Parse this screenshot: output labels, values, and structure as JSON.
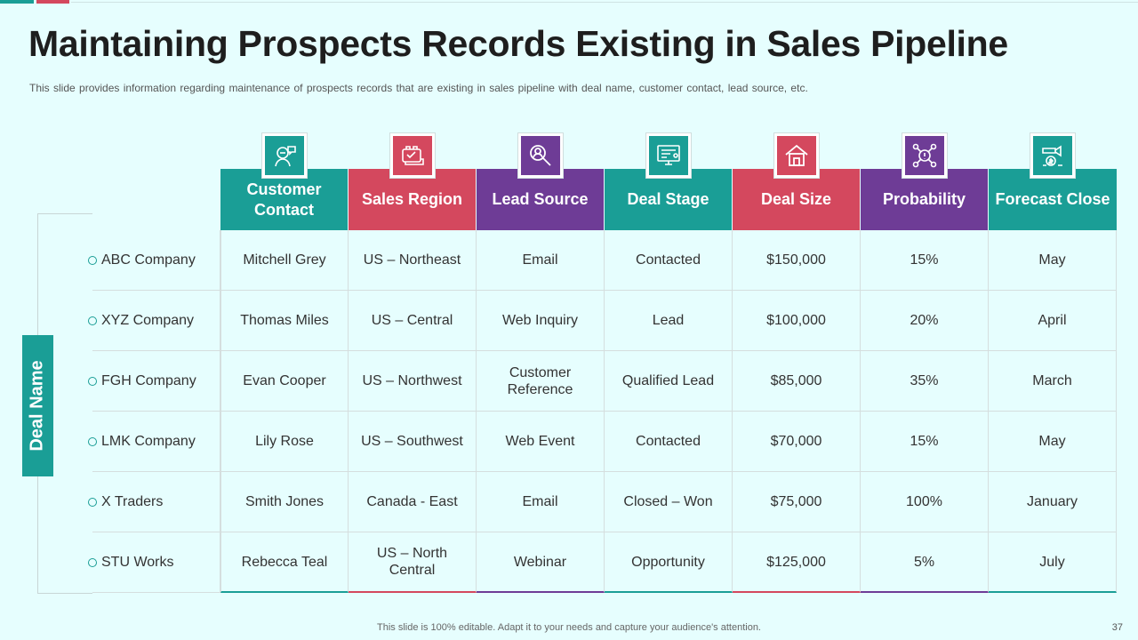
{
  "title": "Maintaining Prospects Records Existing in Sales Pipeline",
  "subtitle": "This slide provides  information regarding  maintenance of prospects records that are existing in sales pipeline with deal name, customer contact, lead source, etc.",
  "side_label": "Deal Name",
  "colors": {
    "teal": "#1a9e96",
    "red": "#d4485e",
    "purple": "#6e3c96"
  },
  "columns": [
    {
      "label": "Customer Contact",
      "color": "#1a9e96",
      "icon": "customer-contact-icon"
    },
    {
      "label": "Sales Region",
      "color": "#d4485e",
      "icon": "sales-region-icon"
    },
    {
      "label": "Lead Source",
      "color": "#6e3c96",
      "icon": "lead-source-icon"
    },
    {
      "label": "Deal Stage",
      "color": "#1a9e96",
      "icon": "deal-stage-icon"
    },
    {
      "label": "Deal Size",
      "color": "#d4485e",
      "icon": "deal-size-icon"
    },
    {
      "label": "Probability",
      "color": "#6e3c96",
      "icon": "probability-icon"
    },
    {
      "label": "Forecast Close",
      "color": "#1a9e96",
      "icon": "forecast-close-icon"
    }
  ],
  "rows": [
    {
      "deal": "ABC Company",
      "cells": [
        "Mitchell Grey",
        "US – Northeast",
        "Email",
        "Contacted",
        "$150,000",
        "15%",
        "May"
      ]
    },
    {
      "deal": "XYZ  Company",
      "cells": [
        "Thomas Miles",
        "US – Central",
        "Web Inquiry",
        "Lead",
        "$100,000",
        "20%",
        "April"
      ]
    },
    {
      "deal": "FGH Company",
      "cells": [
        "Evan Cooper",
        "US – Northwest",
        "Customer Reference",
        "Qualified Lead",
        "$85,000",
        "35%",
        "March"
      ]
    },
    {
      "deal": "LMK Company",
      "cells": [
        "Lily Rose",
        "US – Southwest",
        "Web Event",
        "Contacted",
        "$70,000",
        "15%",
        "May"
      ]
    },
    {
      "deal": "X Traders",
      "cells": [
        "Smith Jones",
        "Canada - East",
        "Email",
        "Closed – Won",
        "$75,000",
        "100%",
        "January"
      ]
    },
    {
      "deal": "STU Works",
      "cells": [
        "Rebecca Teal",
        "US – North Central",
        "Webinar",
        "Opportunity",
        "$125,000",
        "5%",
        "July"
      ]
    }
  ],
  "footer": "This slide is 100% editable. Adapt it to your needs and capture your audience's attention.",
  "page_number": "37"
}
